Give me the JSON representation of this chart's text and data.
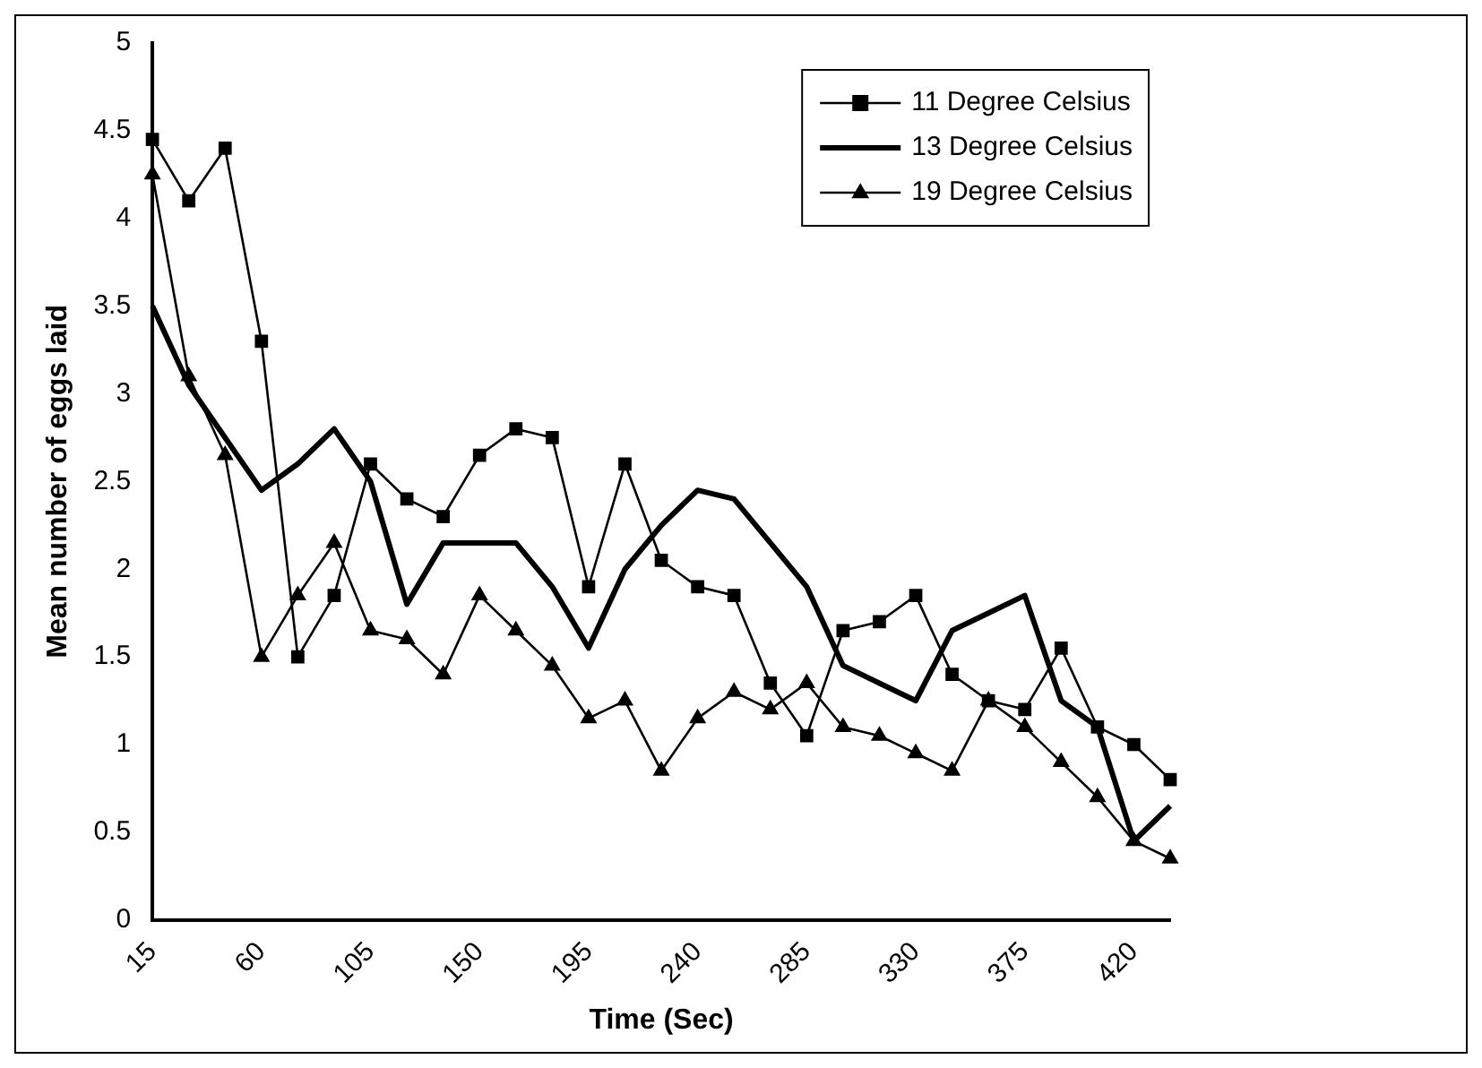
{
  "chart_data": {
    "type": "line",
    "xlabel": "Time (Sec)",
    "ylabel": "Mean number of eggs laid",
    "categories": [
      "15",
      null,
      null,
      "60",
      null,
      null,
      "105",
      null,
      null,
      "150",
      null,
      null,
      "195",
      null,
      null,
      "240",
      null,
      null,
      "285",
      null,
      null,
      "330",
      null,
      null,
      "375",
      null,
      null,
      "420",
      null
    ],
    "series": [
      {
        "name": "11 Degree Celsius",
        "color": "#000000",
        "marker": "square",
        "values": [
          4.45,
          4.1,
          4.4,
          3.3,
          1.5,
          1.85,
          2.6,
          2.4,
          2.3,
          2.65,
          2.8,
          2.75,
          1.9,
          2.6,
          2.05,
          1.9,
          1.85,
          1.35,
          1.05,
          1.65,
          1.7,
          1.85,
          1.4,
          1.25,
          1.2,
          1.55,
          1.1,
          1.0,
          0.8
        ]
      },
      {
        "name": "13 Degree Celsius",
        "color": "#000000",
        "marker": "none",
        "values": [
          3.5,
          3.05,
          2.75,
          2.45,
          2.6,
          2.8,
          2.5,
          1.8,
          2.15,
          2.15,
          2.15,
          1.9,
          1.55,
          2.0,
          2.25,
          2.45,
          2.4,
          2.15,
          1.9,
          1.45,
          1.35,
          1.25,
          1.65,
          1.75,
          1.85,
          1.25,
          1.1,
          0.45,
          0.65
        ]
      },
      {
        "name": "19 Degree Celsius",
        "color": "#000000",
        "marker": "triangle",
        "values": [
          4.25,
          3.1,
          2.65,
          1.5,
          1.85,
          2.15,
          1.65,
          1.6,
          1.4,
          1.85,
          1.65,
          1.45,
          1.15,
          1.25,
          0.85,
          1.15,
          1.3,
          1.2,
          1.35,
          1.1,
          1.05,
          0.95,
          0.85,
          1.25,
          1.1,
          0.9,
          0.7,
          0.45,
          0.35
        ]
      }
    ],
    "ylim": [
      0,
      5
    ],
    "yticks": [
      0,
      0.5,
      1,
      1.5,
      2,
      2.5,
      3,
      3.5,
      4,
      4.5,
      5
    ],
    "grid": false,
    "legend": "top right"
  }
}
